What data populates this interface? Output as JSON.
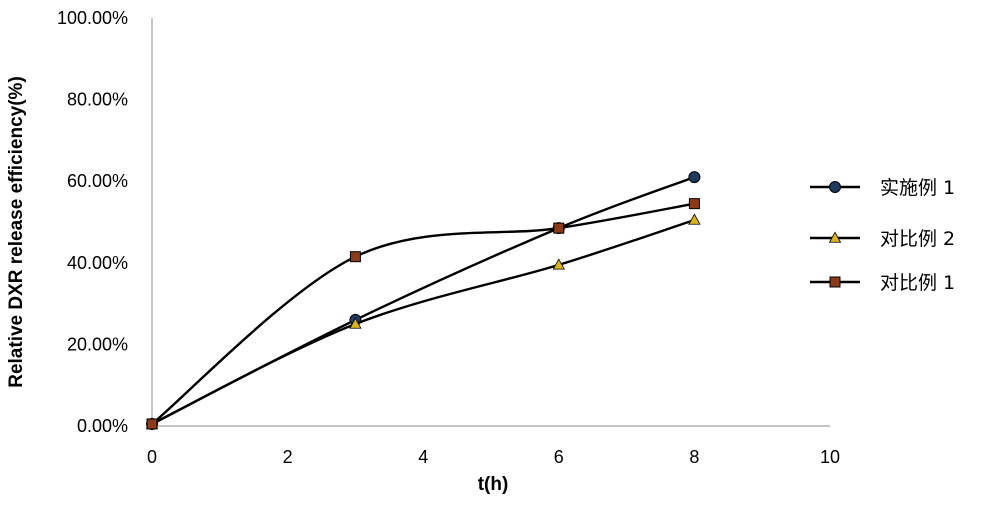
{
  "chart_data": {
    "type": "line",
    "title": "",
    "xlabel": "t(h)",
    "ylabel": "Relative DXR release efficiency(%)",
    "xlim": [
      0,
      10
    ],
    "ylim": [
      0,
      1
    ],
    "x_ticks": [
      0,
      2,
      4,
      6,
      8,
      10
    ],
    "x_tick_labels": [
      "0",
      "2",
      "4",
      "6",
      "8",
      "10"
    ],
    "y_ticks": [
      0,
      0.2,
      0.4,
      0.6,
      0.8,
      1.0
    ],
    "y_tick_labels": [
      "0.00%",
      "20.00%",
      "40.00%",
      "60.00%",
      "80.00%",
      "100.00%"
    ],
    "grid": false,
    "legend_position": "right",
    "series": [
      {
        "name": "实施例 1",
        "marker": "circle",
        "color": "#000000",
        "marker_fill": "#1f3a5f",
        "x": [
          0,
          3,
          6,
          8
        ],
        "y": [
          0.005,
          0.26,
          0.485,
          0.61
        ]
      },
      {
        "name": "对比例 2",
        "marker": "triangle",
        "color": "#000000",
        "marker_fill": "#d9b21f",
        "x": [
          0,
          3,
          6,
          8
        ],
        "y": [
          0.005,
          0.25,
          0.395,
          0.505
        ]
      },
      {
        "name": "对比例 1",
        "marker": "square",
        "color": "#000000",
        "marker_fill": "#8b3a1a",
        "x": [
          0,
          3,
          6,
          8
        ],
        "y": [
          0.005,
          0.415,
          0.485,
          0.545
        ]
      }
    ]
  }
}
